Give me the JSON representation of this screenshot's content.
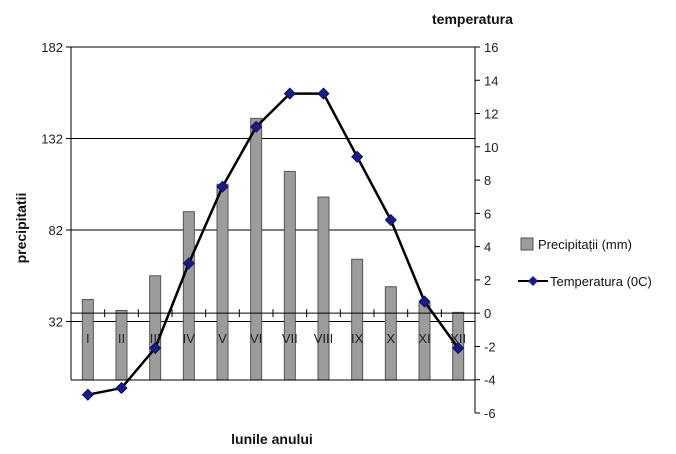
{
  "chart_data": {
    "type": "bar+line",
    "categories": [
      "I",
      "II",
      "III",
      "IV",
      "V",
      "VI",
      "VII",
      "VIII",
      "IX",
      "X",
      "XI",
      "XII"
    ],
    "series": [
      {
        "name": "Precipitații (mm)",
        "type": "bar",
        "axis": "left",
        "values": [
          44,
          38,
          57,
          92,
          107,
          143,
          114,
          100,
          66,
          51,
          42,
          37
        ]
      },
      {
        "name": "Temperatura (0C)",
        "type": "line",
        "axis": "right",
        "values": [
          -4.9,
          -4.5,
          -2.1,
          3.0,
          7.6,
          11.2,
          13.2,
          13.2,
          9.4,
          5.6,
          0.7,
          -2.1
        ]
      }
    ],
    "ylabel_left": "precipitatii",
    "ylabel_right": "temperatura",
    "xlabel": "lunile anului",
    "y_left_ticks": [
      "182",
      "132",
      "82",
      "32"
    ],
    "y_left_lim": [
      -18,
      182
    ],
    "y_right_ticks": [
      "16",
      "14",
      "12",
      "10",
      "8",
      "6",
      "4",
      "2",
      "0",
      "-2",
      "-4",
      "-6"
    ],
    "y_right_lim": [
      -6,
      16
    ],
    "grid": "horizontal at left-axis ticks",
    "legend_position": "right",
    "colors": {
      "bar_fill": "#9c9c9c",
      "bar_stroke": "#555555",
      "line": "#000000",
      "marker": "#1a1a8c"
    }
  }
}
